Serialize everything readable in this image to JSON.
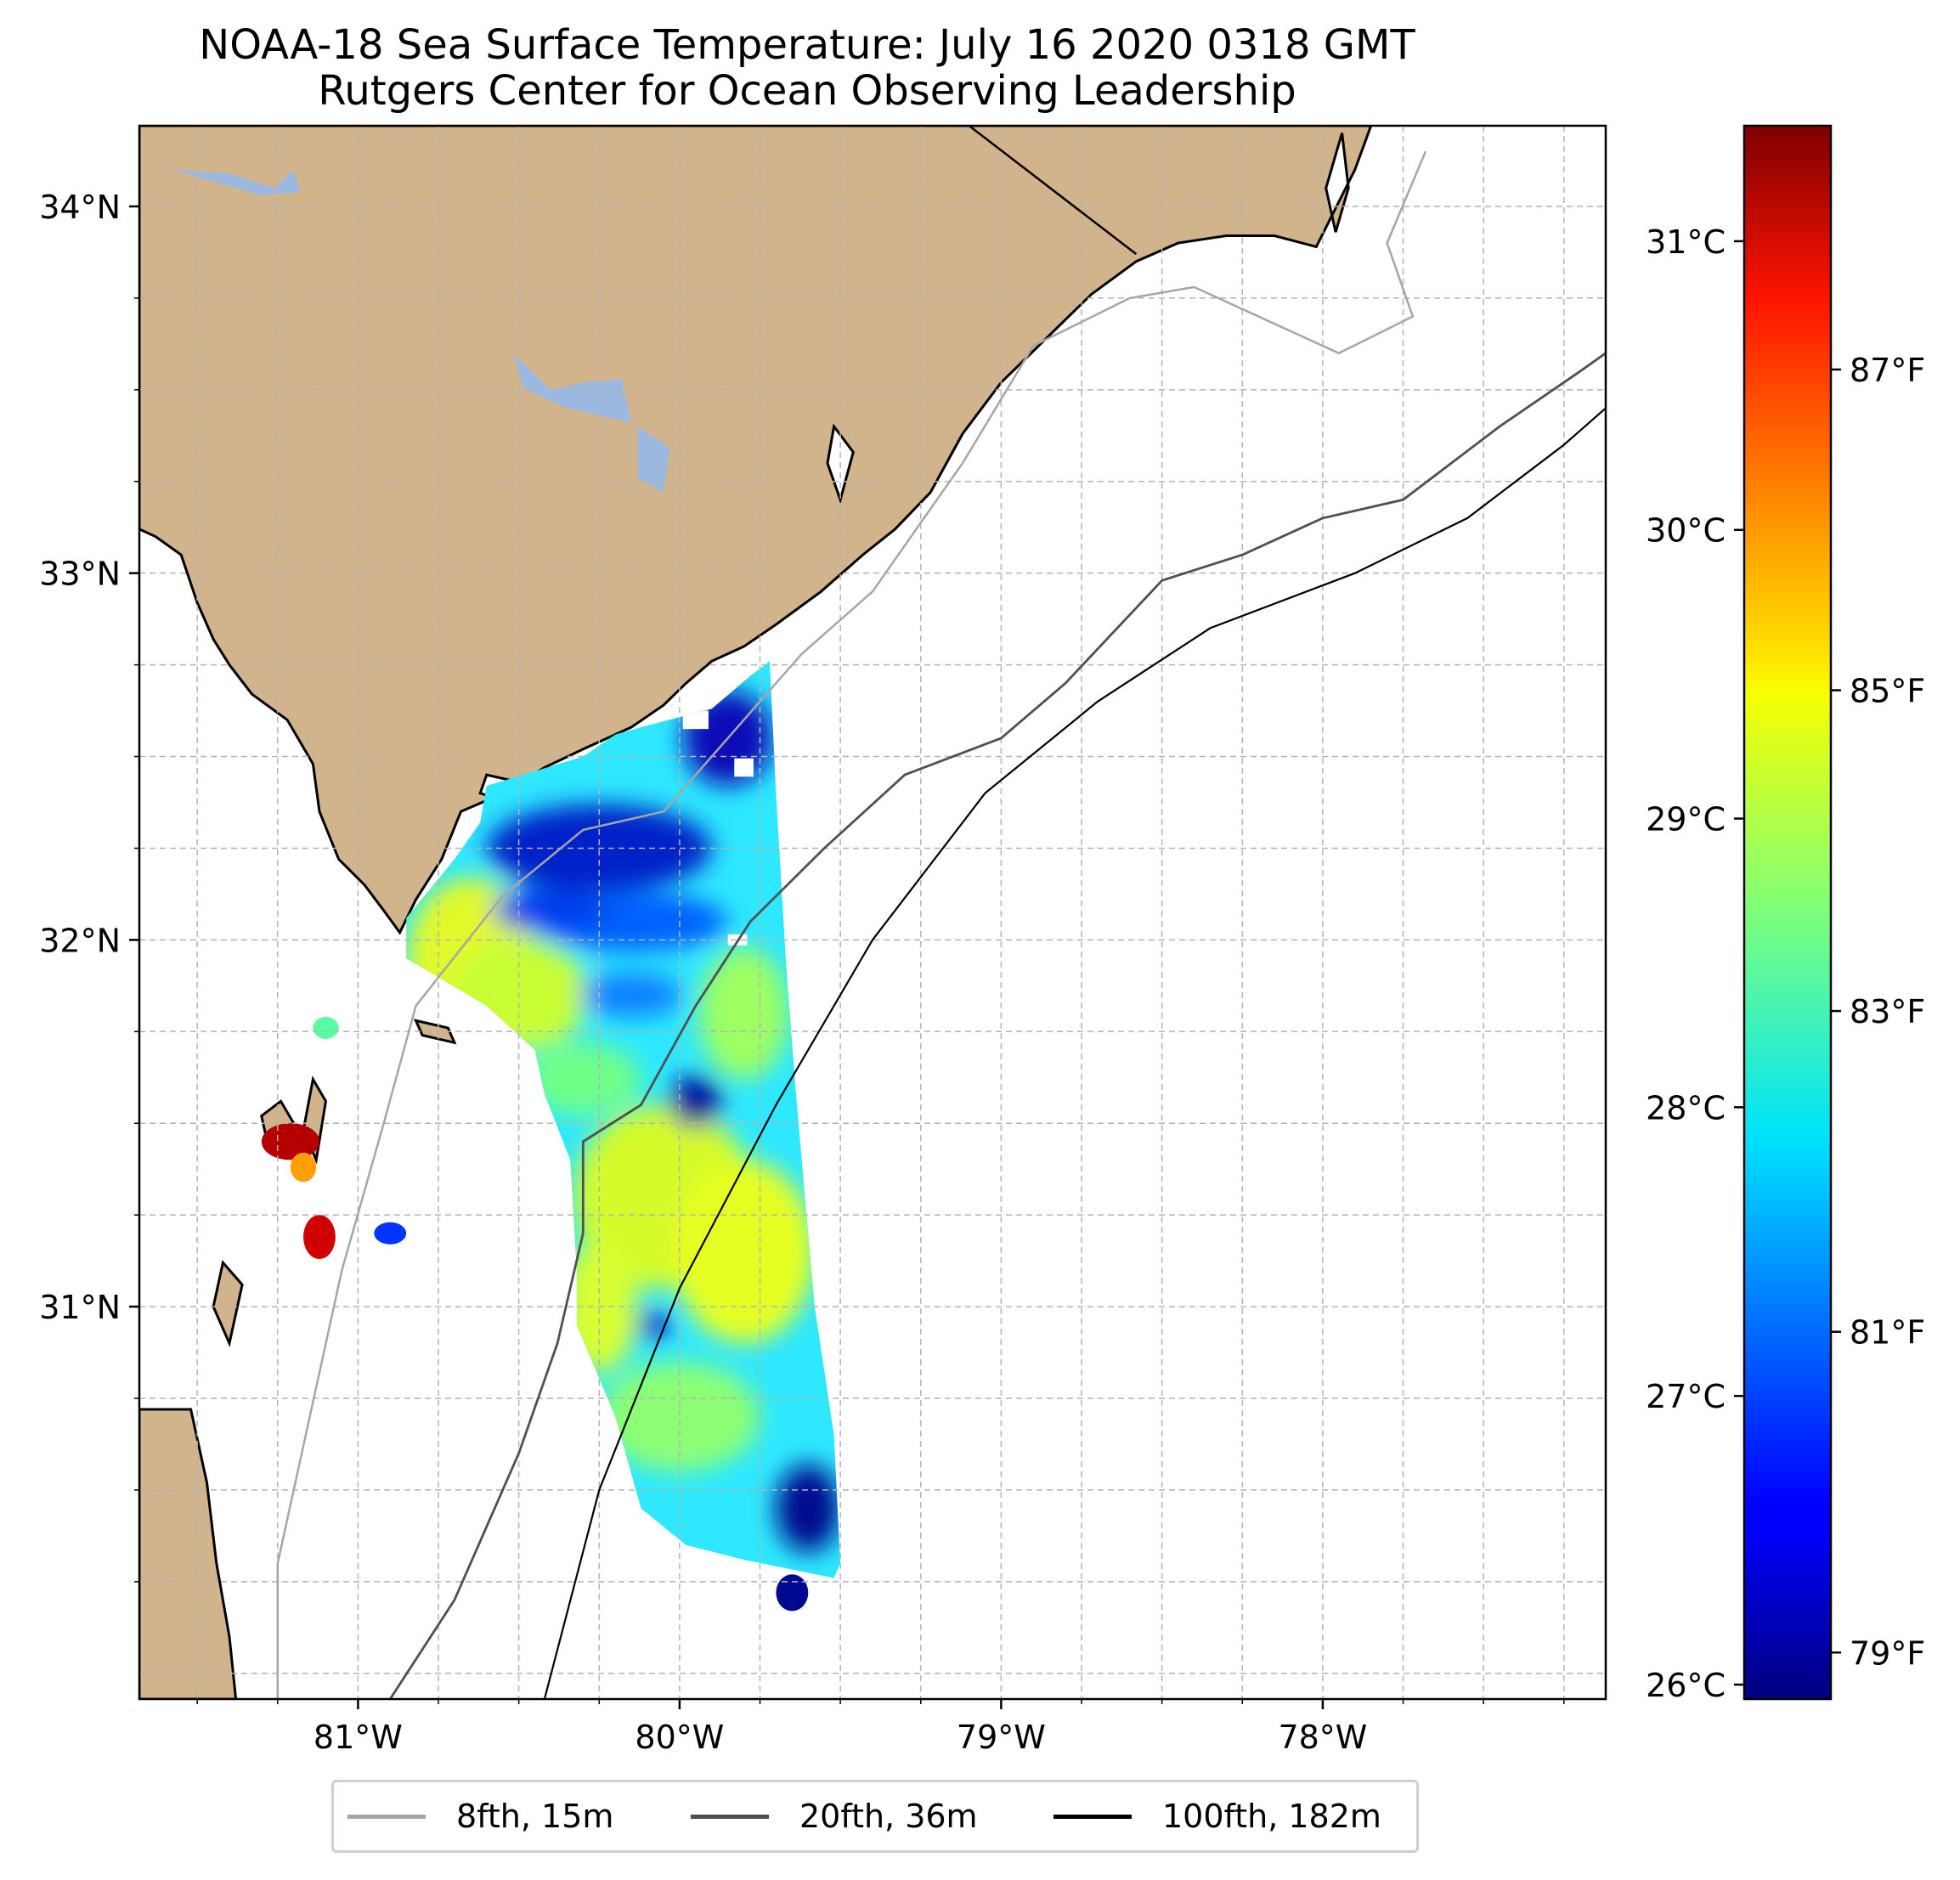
{
  "title": {
    "line1": "NOAA-18 Sea Surface Temperature: July 16 2020 0318 GMT",
    "line2": "Rutgers Center for Ocean Observing Leadership"
  },
  "map": {
    "lon_range": [
      -81.68,
      -77.12
    ],
    "lat_range": [
      29.93,
      34.22
    ],
    "lon_ticks": [
      {
        "value": -81,
        "label": "81°W"
      },
      {
        "value": -80,
        "label": "80°W"
      },
      {
        "value": -79,
        "label": "79°W"
      },
      {
        "value": -78,
        "label": "78°W"
      }
    ],
    "lat_ticks": [
      {
        "value": 34,
        "label": "34°N"
      },
      {
        "value": 33,
        "label": "33°N"
      },
      {
        "value": 32,
        "label": "32°N"
      },
      {
        "value": 31,
        "label": "31°N"
      }
    ],
    "gridlines": "dashed",
    "land_color": "#d2b48c",
    "lake_color": "#9bb8e0",
    "coastline_color": "#000000"
  },
  "colorbar": {
    "colormap": "jet",
    "celsius_range": [
      25.95,
      31.4
    ],
    "celsius_ticks": [
      {
        "value": 26,
        "label": "26°C"
      },
      {
        "value": 27,
        "label": "27°C"
      },
      {
        "value": 28,
        "label": "28°C"
      },
      {
        "value": 29,
        "label": "29°C"
      },
      {
        "value": 30,
        "label": "30°C"
      },
      {
        "value": 31,
        "label": "31°C"
      }
    ],
    "fahrenheit_ticks": [
      {
        "value": 79,
        "label": "79°F"
      },
      {
        "value": 81,
        "label": "81°F"
      },
      {
        "value": 83,
        "label": "83°F"
      },
      {
        "value": 85,
        "label": "85°F"
      },
      {
        "value": 87,
        "label": "87°F"
      }
    ]
  },
  "legend": {
    "position": "bottom-center",
    "items": [
      {
        "label": "8fth, 15m",
        "color": "#a6a6a6"
      },
      {
        "label": "20fth, 36m",
        "color": "#505050"
      },
      {
        "label": "100fth, 182m",
        "color": "#000000"
      }
    ]
  }
}
